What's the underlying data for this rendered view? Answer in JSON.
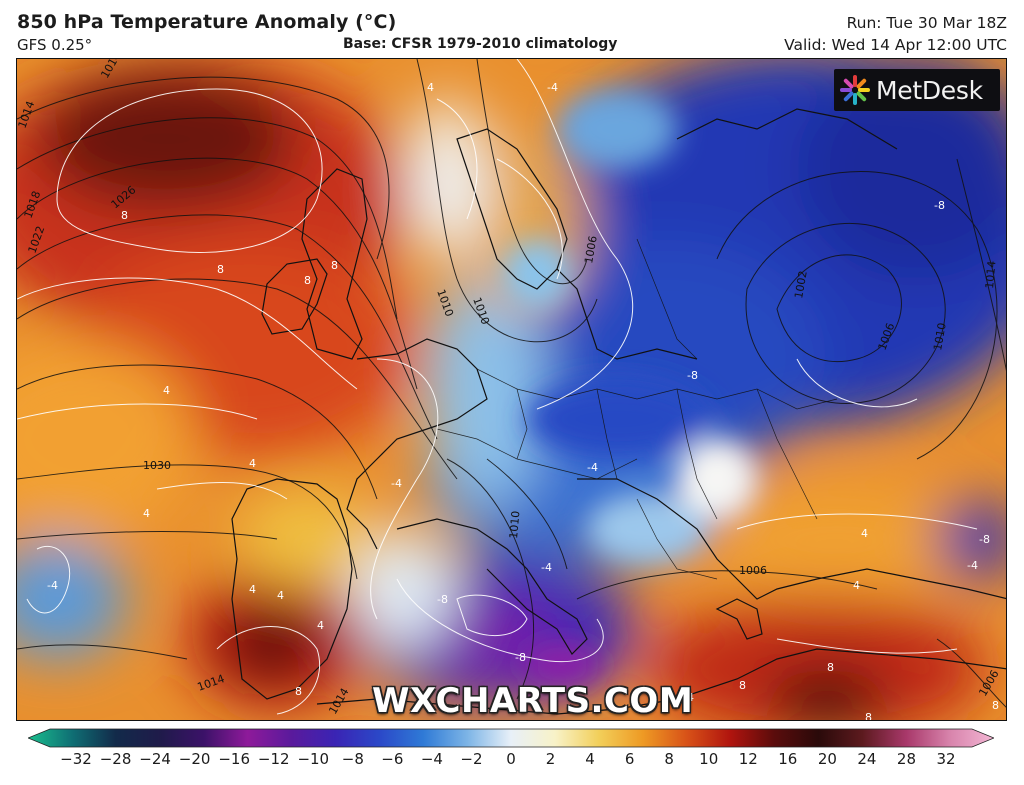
{
  "header": {
    "title": "850 hPa Temperature Anomaly (°C)",
    "model": "GFS 0.25°",
    "base": "Base: CFSR 1979-2010 climatology",
    "run": "Run: Tue 30 Mar 18Z",
    "valid": "Valid: Wed 14 Apr 12:00 UTC"
  },
  "logo": {
    "text": "MetDesk",
    "icon": "metdesk-star-icon"
  },
  "watermark": "WXCHARTS.COM",
  "map": {
    "isobar_labels": [
      {
        "text": "1014"
      },
      {
        "text": "1018"
      },
      {
        "text": "1022"
      },
      {
        "text": "1026"
      },
      {
        "text": "1030"
      },
      {
        "text": "1014"
      },
      {
        "text": "1014"
      },
      {
        "text": "1010"
      },
      {
        "text": "1006"
      },
      {
        "text": "1002"
      },
      {
        "text": "1006"
      },
      {
        "text": "1010"
      },
      {
        "text": "1014"
      },
      {
        "text": "1010"
      },
      {
        "text": "1006"
      },
      {
        "text": "1006"
      },
      {
        "text": "1014"
      },
      {
        "text": "1010"
      }
    ],
    "anomaly_labels": [
      {
        "text": "8"
      },
      {
        "text": "8"
      },
      {
        "text": "8"
      },
      {
        "text": "8"
      },
      {
        "text": "4"
      },
      {
        "text": "4"
      },
      {
        "text": "4"
      },
      {
        "text": "4"
      },
      {
        "text": "-4"
      },
      {
        "text": "-4"
      },
      {
        "text": "-4"
      },
      {
        "text": "-8"
      },
      {
        "text": "-8"
      },
      {
        "text": "-8"
      },
      {
        "text": "8"
      },
      {
        "text": "8"
      },
      {
        "text": "8"
      },
      {
        "text": "8"
      },
      {
        "text": "4"
      },
      {
        "text": "4"
      },
      {
        "text": "4"
      },
      {
        "text": "-4"
      },
      {
        "text": "-8"
      },
      {
        "text": "-8"
      },
      {
        "text": "-4"
      },
      {
        "text": "4"
      },
      {
        "text": "-4"
      },
      {
        "text": "4"
      },
      {
        "text": "8"
      },
      {
        "text": "4"
      }
    ]
  },
  "colorbar": {
    "ticks": [
      "−32",
      "−28",
      "−24",
      "−20",
      "−16",
      "−12",
      "−10",
      "−8",
      "−6",
      "−4",
      "−2",
      "0",
      "2",
      "4",
      "6",
      "8",
      "10",
      "12",
      "16",
      "20",
      "24",
      "28",
      "32"
    ],
    "colors": [
      "#1bbf8e",
      "#0f6f74",
      "#122a4a",
      "#1f1b4a",
      "#3b1268",
      "#8e1a9a",
      "#5a1a9c",
      "#3a24b4",
      "#2b48c8",
      "#2f7ad6",
      "#7cb4e6",
      "#e8f0f8",
      "#f8f2c8",
      "#f2cf5a",
      "#ee9a24",
      "#d85218",
      "#b0140e",
      "#5a0c0c",
      "#2a0a0a",
      "#5c1a1e",
      "#a8386a",
      "#d884ac",
      "#f3b6d4"
    ]
  }
}
